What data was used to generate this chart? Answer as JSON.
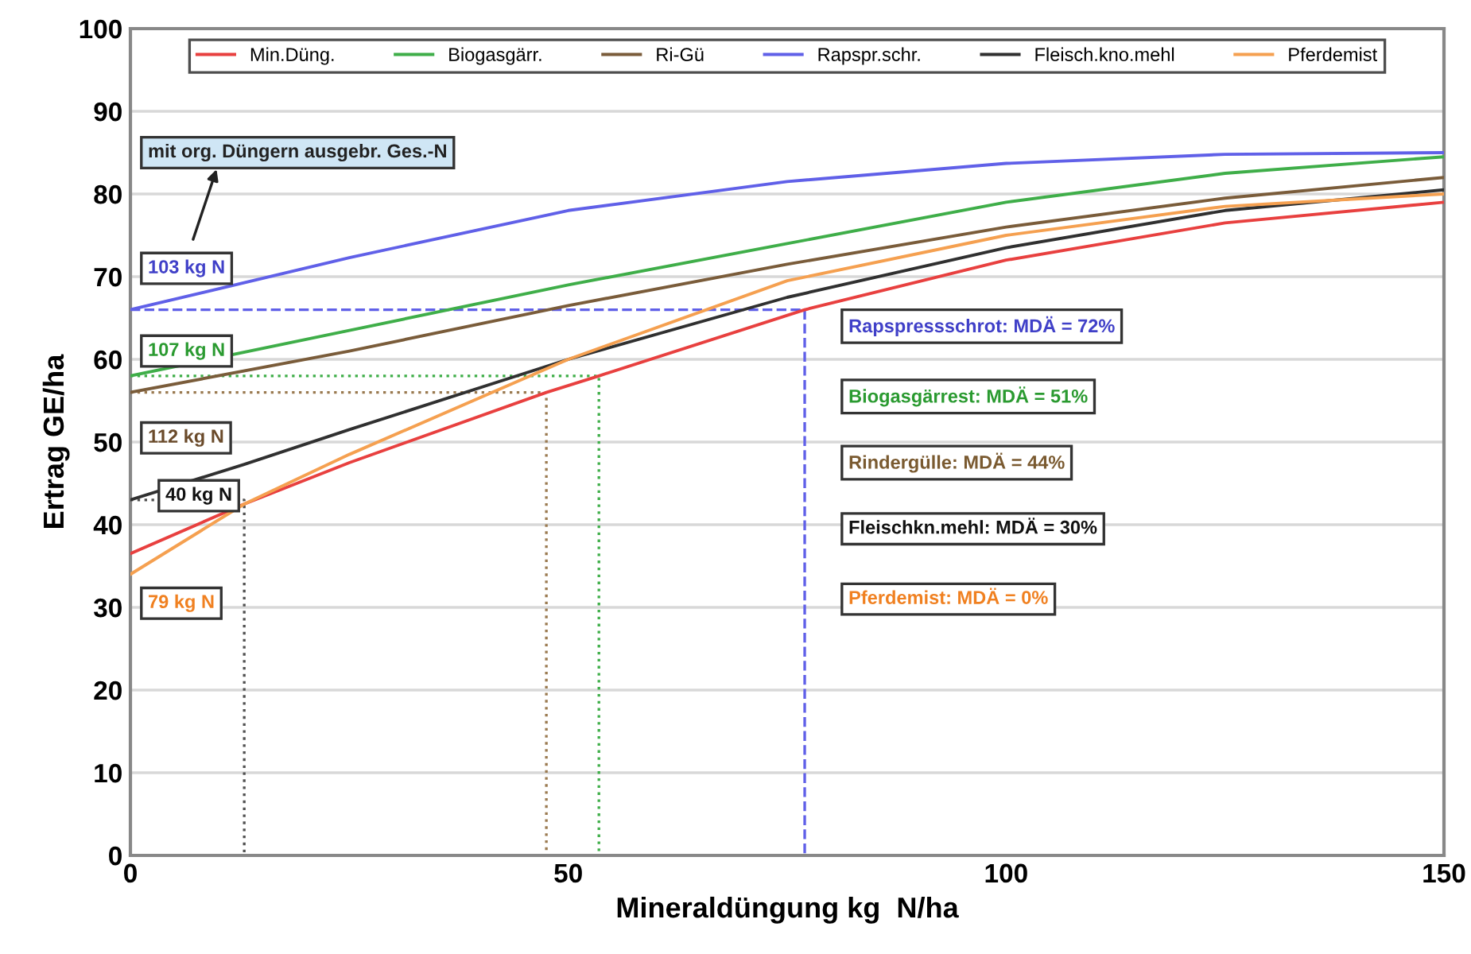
{
  "chart_data": {
    "type": "line",
    "xlabel": "Mineraldüngung kg  N/ha",
    "ylabel": "Ertrag GE/ha",
    "xlim": [
      0,
      150
    ],
    "xticks": [
      0,
      50,
      100,
      150
    ],
    "ylim": [
      0,
      100
    ],
    "yticks": [
      0,
      10,
      20,
      30,
      40,
      50,
      60,
      70,
      80,
      90,
      100
    ],
    "grid": "y",
    "legend": "top",
    "marker": "none",
    "series": [
      {
        "name": "Min.Düng.",
        "color": "#e8403f",
        "x": [
          0,
          13,
          25,
          47.5,
          53.5,
          77,
          100,
          125,
          150
        ],
        "values": [
          36.5,
          42.5,
          47.5,
          56,
          58,
          66,
          72,
          76.5,
          79
        ]
      },
      {
        "name": "Biogasgärr.",
        "color": "#3fae49",
        "x": [
          0,
          25,
          50,
          75,
          100,
          125,
          150
        ],
        "values": [
          58,
          63.5,
          69,
          74,
          79,
          82.5,
          84.5
        ]
      },
      {
        "name": "Ri-Gü",
        "color": "#7a5c3a",
        "x": [
          0,
          25,
          50,
          75,
          100,
          125,
          150
        ],
        "values": [
          56,
          61,
          66.5,
          71.5,
          76,
          79.5,
          82
        ]
      },
      {
        "name": "Rapspr.schr.",
        "color": "#6060e8",
        "x": [
          0,
          25,
          50,
          75,
          100,
          125,
          150
        ],
        "values": [
          66,
          72.3,
          78,
          81.5,
          83.7,
          84.8,
          85
        ]
      },
      {
        "name": "Fleisch.kno.mehl",
        "color": "#303030",
        "x": [
          0,
          13,
          25,
          50,
          75,
          100,
          125,
          150
        ],
        "values": [
          43,
          47.3,
          51.5,
          60,
          67.5,
          73.5,
          78,
          80.5
        ]
      },
      {
        "name": "Pferdemist",
        "color": "#f5a050",
        "x": [
          0,
          13,
          25,
          50,
          75,
          100,
          125,
          150
        ],
        "values": [
          34,
          42.5,
          48.5,
          60,
          69.5,
          75,
          78.5,
          80
        ]
      },
      {
        "color": "#6060e8",
        "line_style": "dashed",
        "x": [
          0,
          77,
          77
        ],
        "values": [
          66,
          66,
          0
        ]
      },
      {
        "color": "#3fae49",
        "line_style": "dotted",
        "x": [
          0,
          53.5,
          53.5
        ],
        "values": [
          58,
          58,
          0
        ]
      },
      {
        "color": "#9a7a50",
        "line_style": "dotted",
        "x": [
          0,
          47.5,
          47.5
        ],
        "values": [
          56,
          56,
          0
        ]
      },
      {
        "color": "#505050",
        "line_style": "dotted",
        "x": [
          0,
          13,
          13
        ],
        "values": [
          43,
          43,
          0
        ]
      }
    ],
    "annotations": [
      "mit org. Düngern ausgebr. Ges.-N",
      "103 kg N",
      "107 kg N",
      "112 kg N",
      "40 kg N",
      "79 kg N",
      "Rapspressschrot: MDÄ = 72%",
      "Biogasgärrest: MDÄ = 51%",
      "Rindergülle: MDÄ = 44%",
      "Fleischkn.mehl: MDÄ = 30%",
      "Pferdemist: MDÄ = 0%"
    ]
  }
}
